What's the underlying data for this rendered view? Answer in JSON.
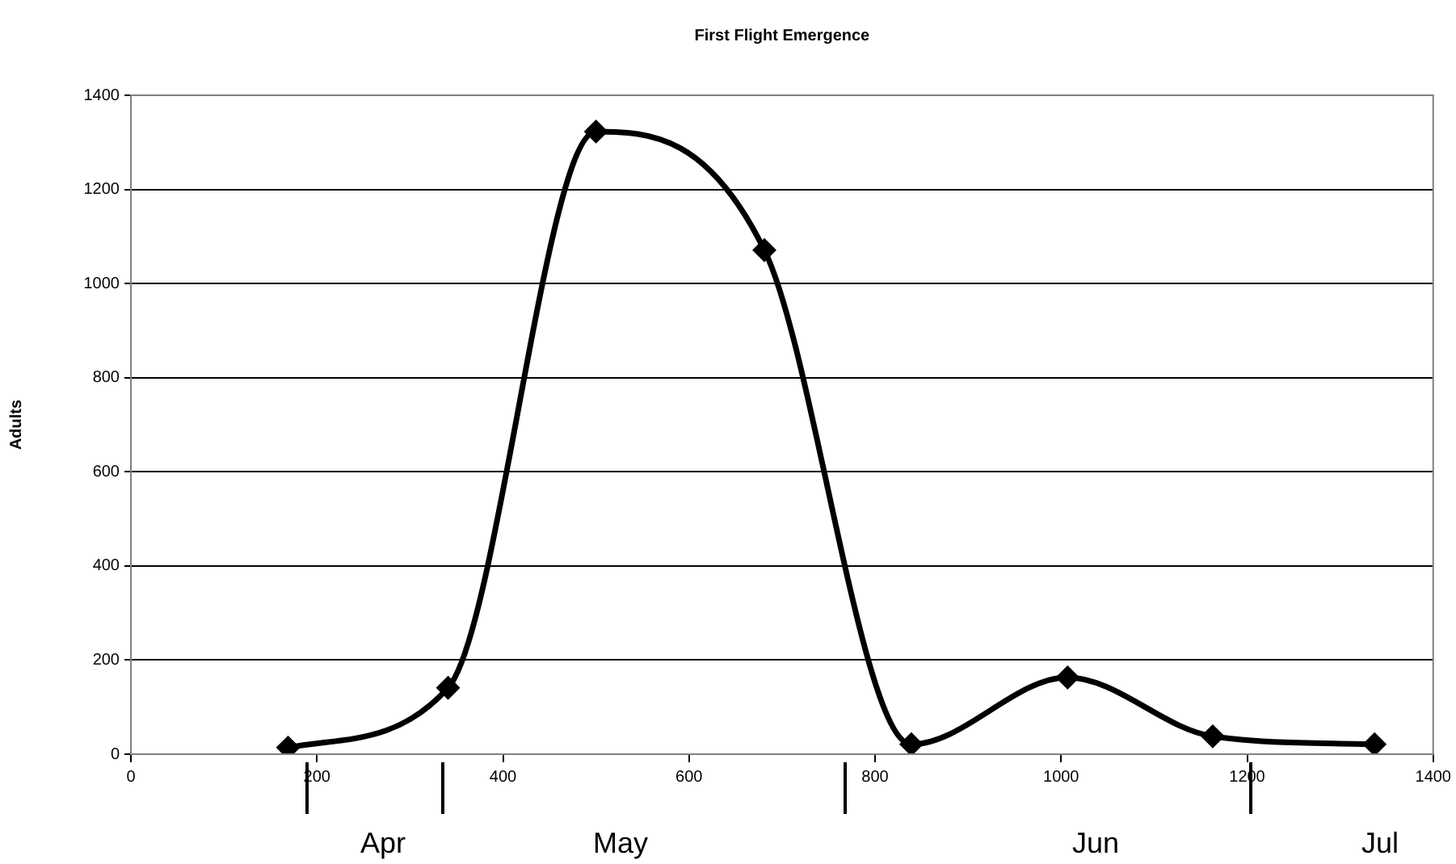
{
  "chart_data": {
    "type": "line",
    "title": "First Flight Emergence",
    "ylabel": "Adults",
    "x": [
      169,
      341,
      500,
      681,
      839,
      1007,
      1163,
      1337
    ],
    "series": [
      {
        "color": "#000000",
        "values": [
          14,
          141,
          1323,
          1071,
          21,
          163,
          38,
          21
        ]
      }
    ],
    "xlim": [
      0,
      1400
    ],
    "xticks": [
      0,
      200,
      400,
      600,
      800,
      1000,
      1200,
      1400
    ],
    "ylim": [
      0,
      1400
    ],
    "yticks": [
      0,
      200,
      400,
      600,
      800,
      1000,
      1200,
      1400
    ],
    "grid": "y",
    "legend": false,
    "marker": "diamond",
    "line_style": "solid",
    "annotations": [
      "Apr",
      "May",
      "Jun",
      "Jul"
    ]
  }
}
